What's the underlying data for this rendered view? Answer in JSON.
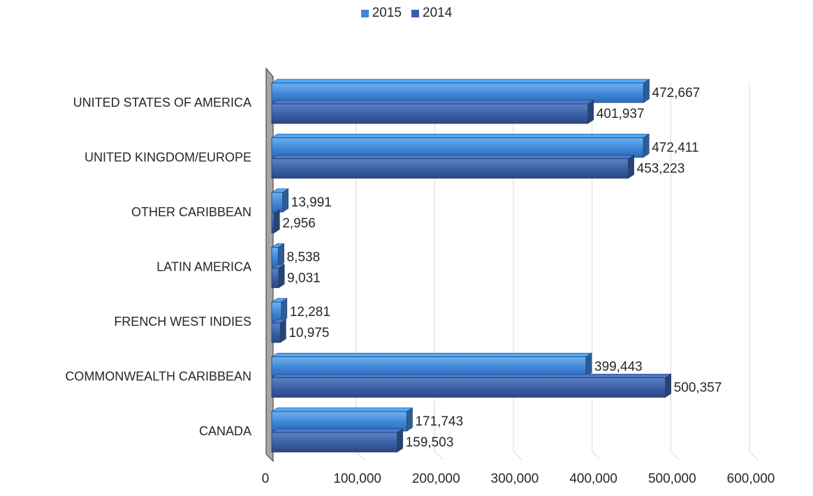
{
  "chart_data": {
    "type": "bar",
    "orientation": "horizontal",
    "categories": [
      "UNITED STATES OF AMERICA",
      "UNITED KINGDOM/EUROPE",
      "OTHER CARIBBEAN",
      "LATIN AMERICA",
      "FRENCH WEST INDIES",
      "COMMONWEALTH CARIBBEAN",
      "CANADA"
    ],
    "series": [
      {
        "name": "2015",
        "values": [
          472667,
          472411,
          13991,
          8538,
          12281,
          399443,
          171743
        ],
        "labels": [
          "472,667",
          "472,411",
          "13,991",
          "8,538",
          "12,281",
          "399,443",
          "171,743"
        ],
        "color": "#3f86d6"
      },
      {
        "name": "2014",
        "values": [
          401937,
          453223,
          2956,
          9031,
          10975,
          500357,
          159503
        ],
        "labels": [
          "401,937",
          "453,223",
          "2,956",
          "9,031",
          "10,975",
          "500,357",
          "159,503"
        ],
        "color": "#3b5fa6"
      }
    ],
    "xlim": [
      0,
      600000
    ],
    "x_ticks": [
      0,
      100000,
      200000,
      300000,
      400000,
      500000,
      600000
    ],
    "x_tick_labels": [
      "0",
      "100,000",
      "200,000",
      "300,000",
      "400,000",
      "500,000",
      "600,000"
    ],
    "grid": true,
    "legend_position": "top-center",
    "style": "3d"
  }
}
